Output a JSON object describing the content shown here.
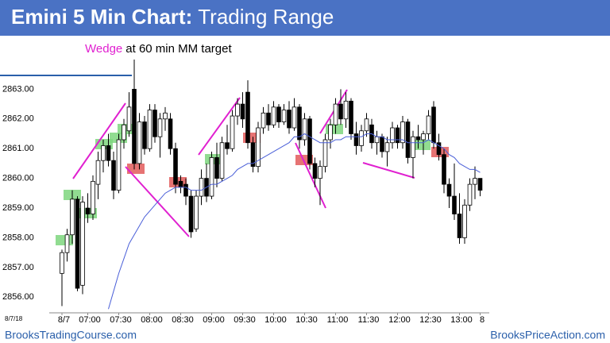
{
  "chart_data": {
    "type": "candlestick",
    "title": "Emini 5 Min Chart:",
    "subtitle": "Trading Range",
    "annotations": [
      "Wedge",
      "at 60 min MM target"
    ],
    "date_note": "8/7/18",
    "footer_left": "BrooksTradingCourse.com",
    "footer_right": "BrooksPriceAction.com",
    "up_color": "#ffffff",
    "down_color": "#000000",
    "ylim": [
      2855.5,
      2864.4
    ],
    "yticks": [
      {
        "value": 2856,
        "label": "2856.00"
      },
      {
        "value": 2857,
        "label": "2857.00"
      },
      {
        "value": 2858,
        "label": "2858.00"
      },
      {
        "value": 2859,
        "label": "2859.00"
      },
      {
        "value": 2860,
        "label": "2860.00"
      },
      {
        "value": 2861,
        "label": "2861.00"
      },
      {
        "value": 2862,
        "label": "2862.00"
      },
      {
        "value": 2863,
        "label": "2863.00"
      }
    ],
    "categories": [
      "8/7",
      null,
      null,
      null,
      null,
      "07:00",
      null,
      null,
      null,
      null,
      null,
      "07:30",
      null,
      null,
      null,
      null,
      null,
      "08:00",
      null,
      null,
      null,
      null,
      null,
      "08:30",
      null,
      null,
      null,
      null,
      null,
      "09:00",
      null,
      null,
      null,
      null,
      null,
      "09:30",
      null,
      null,
      null,
      null,
      null,
      "10:00",
      null,
      null,
      null,
      null,
      null,
      "10:30",
      null,
      null,
      null,
      null,
      null,
      "11:00",
      null,
      null,
      null,
      null,
      null,
      "11:30",
      null,
      null,
      null,
      null,
      null,
      "12:00",
      null,
      null,
      null,
      null,
      null,
      "12:30",
      null,
      null,
      null,
      null,
      null,
      "13:00",
      null,
      null,
      null,
      "8"
    ],
    "open": [
      2856.8,
      2857.5,
      2858.1,
      2859.3,
      2856.4,
      2859.0,
      2858.8,
      2859.8,
      2860.6,
      2861.1,
      2860.6,
      2859.6,
      2861.3,
      2861.6,
      2863.0,
      2860.5,
      2861.9,
      2861.0,
      2862.3,
      2861.4,
      2862.0,
      2862.0,
      2861.0,
      2859.9,
      2859.8,
      2859.4,
      2858.3,
      2859.4,
      2860.0,
      2859.4,
      2860.7,
      2860.0,
      2861.2,
      2861.0,
      2862.1,
      2862.5,
      2862.9,
      2861.2,
      2860.4,
      2861.7,
      2862.2,
      2861.8,
      2862.4,
      2861.9,
      2862.3,
      2861.7,
      2862.4,
      2861.3,
      2862.0,
      2860.5,
      2860.0,
      2860.4,
      2861.3,
      2861.8,
      2862.5,
      2862.0,
      2862.6,
      2861.5,
      2861.1,
      2861.6,
      2861.8,
      2861.2,
      2861.4,
      2860.9,
      2861.2,
      2861.7,
      2861.2,
      2861.9,
      2860.7,
      2861.4,
      2861.3,
      2861.5,
      2862.4,
      2861.2,
      2860.8,
      2859.8,
      2859.4,
      2858.8,
      2858.0,
      2859.1,
      2859.8,
      2860.0
    ],
    "high": [
      2857.6,
      2858.3,
      2859.6,
      2859.4,
      2859.4,
      2859.5,
      2860.1,
      2860.9,
      2861.3,
      2861.5,
      2860.9,
      2861.5,
      2862.0,
      2862.9,
      2864.0,
      2862.2,
      2862.1,
      2862.5,
      2862.5,
      2862.2,
      2862.4,
      2862.2,
      2861.2,
      2860.1,
      2860.0,
      2859.6,
      2859.6,
      2860.3,
      2860.5,
      2860.9,
      2861.2,
      2861.4,
      2861.8,
      2862.3,
      2862.7,
      2862.9,
      2863.3,
      2861.4,
      2861.9,
      2862.4,
      2862.5,
      2862.6,
      2862.5,
      2862.5,
      2862.6,
      2862.7,
      2862.5,
      2862.2,
      2862.1,
      2860.7,
      2860.6,
      2861.5,
      2862.0,
      2862.7,
      2863.0,
      2862.9,
      2862.7,
      2861.9,
      2861.8,
      2862.2,
      2862.0,
      2861.6,
      2861.5,
      2861.4,
      2861.9,
      2861.8,
      2862.1,
      2862.0,
      2861.6,
      2861.8,
      2861.6,
      2862.3,
      2862.6,
      2861.5,
      2861.0,
      2860.0,
      2860.5,
      2859.5,
      2859.3,
      2860.0,
      2860.4,
      2860.0
    ],
    "low": [
      2855.7,
      2857.2,
      2857.8,
      2856.2,
      2856.1,
      2858.5,
      2858.6,
      2859.3,
      2860.2,
      2860.4,
      2859.3,
      2859.5,
      2861.0,
      2861.4,
      2860.3,
      2860.3,
      2860.8,
      2860.9,
      2861.2,
      2860.7,
      2861.6,
      2860.8,
      2859.5,
      2859.5,
      2859.1,
      2858.0,
      2858.2,
      2859.1,
      2859.2,
      2859.3,
      2859.7,
      2859.9,
      2860.8,
      2860.9,
      2861.8,
      2861.7,
      2861.0,
      2860.2,
      2860.2,
      2861.5,
      2861.6,
      2861.7,
      2861.7,
      2861.8,
      2861.5,
      2861.6,
      2861.0,
      2861.1,
      2860.3,
      2859.7,
      2859.1,
      2860.2,
      2861.0,
      2861.5,
      2861.8,
      2861.7,
      2861.3,
      2860.8,
      2860.9,
      2861.4,
      2861.0,
      2860.8,
      2860.7,
      2860.4,
      2861.0,
      2861.0,
      2861.0,
      2860.5,
      2860.0,
      2861.0,
      2860.8,
      2861.3,
      2861.0,
      2860.6,
      2859.5,
      2859.0,
      2858.6,
      2857.8,
      2857.8,
      2858.9,
      2859.3,
      2859.4
    ],
    "close": [
      2857.5,
      2858.1,
      2859.3,
      2856.3,
      2859.2,
      2858.8,
      2859.9,
      2860.6,
      2861.1,
      2860.6,
      2859.6,
      2861.3,
      2861.8,
      2862.4,
      2860.5,
      2861.9,
      2861.0,
      2862.3,
      2861.4,
      2862.0,
      2862.2,
      2861.0,
      2859.8,
      2859.7,
      2859.4,
      2858.2,
      2859.4,
      2860.0,
      2859.4,
      2860.7,
      2860.0,
      2861.2,
      2861.0,
      2862.1,
      2862.5,
      2862.0,
      2861.2,
      2860.4,
      2861.7,
      2862.2,
      2861.8,
      2862.4,
      2861.9,
      2862.3,
      2861.7,
      2862.4,
      2861.3,
      2862.0,
      2860.5,
      2860.0,
      2860.4,
      2861.3,
      2861.8,
      2862.5,
      2862.0,
      2862.6,
      2861.5,
      2861.1,
      2861.6,
      2862.0,
      2861.2,
      2861.4,
      2860.9,
      2861.2,
      2861.7,
      2861.2,
      2861.9,
      2860.7,
      2861.4,
      2861.3,
      2861.5,
      2862.1,
      2861.2,
      2860.8,
      2859.8,
      2859.4,
      2858.8,
      2858.0,
      2859.1,
      2859.8,
      2860.0,
      2859.6
    ],
    "ma": {
      "color": "#4a5fd8",
      "values": [
        null,
        null,
        null,
        null,
        null,
        null,
        null,
        null,
        null,
        2855.6,
        2856.2,
        2856.8,
        2857.3,
        2857.8,
        2858.1,
        2858.4,
        2858.7,
        2858.9,
        2859.1,
        2859.3,
        2859.5,
        2859.6,
        2859.7,
        2859.7,
        2859.7,
        2859.6,
        2859.6,
        2859.6,
        2859.7,
        2859.8,
        2859.8,
        2859.9,
        2860.0,
        2860.1,
        2860.3,
        2860.4,
        2860.5,
        2860.5,
        2860.6,
        2860.7,
        2860.8,
        2860.9,
        2861.0,
        2861.1,
        2861.2,
        2861.4,
        2861.4,
        2861.5,
        2861.4,
        2861.3,
        2861.2,
        2861.2,
        2861.2,
        2861.3,
        2861.3,
        2861.4,
        2861.4,
        2861.4,
        2861.4,
        2861.5,
        2861.5,
        2861.4,
        2861.4,
        2861.3,
        2861.3,
        2861.3,
        2861.3,
        2861.2,
        2861.2,
        2861.2,
        2861.2,
        2861.3,
        2861.2,
        2861.1,
        2861.0,
        2860.8,
        2860.7,
        2860.5,
        2860.4,
        2860.3,
        2860.3,
        2860.2
      ]
    }
  }
}
